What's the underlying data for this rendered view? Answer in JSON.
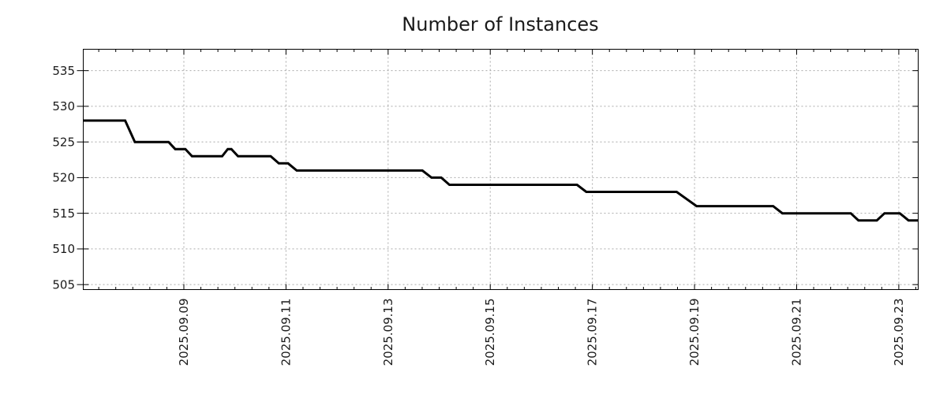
{
  "title": "Number of Instances",
  "colors": {
    "background": "#ffffff",
    "line": "#000000",
    "grid": "#aaaaaa",
    "axis": "#000000",
    "text": "#1a1a1a"
  },
  "chart_data": {
    "type": "line",
    "title": "Number of Instances",
    "xlabel": "",
    "ylabel": "",
    "legend": "none",
    "grid": true,
    "x_unit": "days since 2025-09-07 00:00",
    "xlim": [
      0.03,
      16.38
    ],
    "ylim": [
      504.3,
      538.0
    ],
    "y_ticks": [
      505,
      510,
      515,
      520,
      525,
      530,
      535
    ],
    "x_ticks": [
      {
        "pos": 2,
        "label": "2025.09.09"
      },
      {
        "pos": 4,
        "label": "2025.09.11"
      },
      {
        "pos": 6,
        "label": "2025.09.13"
      },
      {
        "pos": 8,
        "label": "2025.09.15"
      },
      {
        "pos": 10,
        "label": "2025.09.17"
      },
      {
        "pos": 12,
        "label": "2025.09.19"
      },
      {
        "pos": 14,
        "label": "2025.09.21"
      },
      {
        "pos": 16,
        "label": "2025.09.23"
      }
    ],
    "x_minor_tick_interval": 0.33333,
    "series": [
      {
        "name": "Number of Instances",
        "color": "#000000",
        "points": [
          [
            0.03,
            528
          ],
          [
            0.85,
            528
          ],
          [
            1.04,
            525
          ],
          [
            1.7,
            525
          ],
          [
            1.83,
            524
          ],
          [
            2.03,
            524
          ],
          [
            2.16,
            523
          ],
          [
            2.75,
            523
          ],
          [
            2.86,
            524
          ],
          [
            2.93,
            524
          ],
          [
            3.06,
            523
          ],
          [
            3.7,
            523
          ],
          [
            3.86,
            522
          ],
          [
            4.04,
            522
          ],
          [
            4.21,
            521
          ],
          [
            6.67,
            521
          ],
          [
            6.85,
            520
          ],
          [
            7.04,
            520
          ],
          [
            7.2,
            519
          ],
          [
            9.7,
            519
          ],
          [
            9.88,
            518
          ],
          [
            11.65,
            518
          ],
          [
            12.04,
            516
          ],
          [
            13.54,
            516
          ],
          [
            13.72,
            515
          ],
          [
            15.06,
            515
          ],
          [
            15.21,
            514
          ],
          [
            15.57,
            514
          ],
          [
            15.72,
            515
          ],
          [
            16.02,
            515
          ],
          [
            16.19,
            514
          ],
          [
            16.38,
            514
          ]
        ]
      }
    ]
  }
}
